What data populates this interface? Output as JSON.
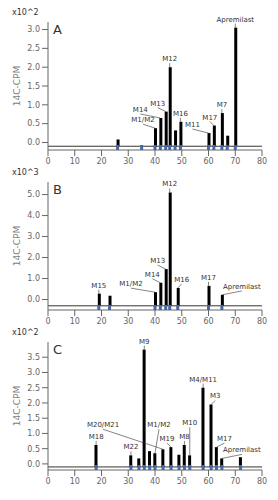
{
  "chart_data": [
    {
      "type": "bar",
      "title": "A",
      "y_label": "14C-CPM",
      "y_exponent": "x10^2",
      "xlim": [
        0,
        80
      ],
      "xticks": [
        0,
        10,
        20,
        30,
        40,
        50,
        60,
        70,
        80
      ],
      "ylim": [
        -0.2,
        3.2
      ],
      "yticks": [
        {
          "value": 0,
          "label": "0.0"
        },
        0.5,
        {
          "value": 1,
          "label": "1.0"
        },
        1.5,
        {
          "value": 2,
          "label": "2.0"
        },
        2.5,
        {
          "value": 3,
          "label": "3.0"
        }
      ],
      "grid": false,
      "baseline": -0.1,
      "color": "black",
      "x": [
        26,
        40,
        42,
        44,
        45.5,
        47.5,
        49.5,
        60,
        62,
        65,
        67,
        70
      ],
      "values": [
        0.08,
        0.38,
        0.65,
        0.82,
        2.0,
        0.32,
        0.55,
        0.25,
        0.45,
        0.78,
        0.18,
        3.05
      ],
      "annotations": [
        null,
        "M1/M2",
        "M14",
        "M13",
        "M12",
        null,
        "M16",
        "M11",
        "M17",
        "M7",
        null,
        "Apremilast"
      ],
      "fraction_markers": {
        "color": "#4466aa",
        "x": [
          26,
          35,
          40,
          42,
          44,
          45.5,
          47.5,
          49.5,
          60,
          62,
          65,
          67,
          70
        ]
      }
    },
    {
      "type": "bar",
      "title": "B",
      "y_label": "14C-CPM",
      "y_exponent": "x10^3",
      "xlim": [
        0,
        80
      ],
      "xticks": [
        0,
        10,
        20,
        30,
        40,
        50,
        60,
        70,
        80
      ],
      "ylim": [
        -0.5,
        5.6
      ],
      "yticks": [
        {
          "value": 0,
          "label": "0.0"
        },
        {
          "value": 1,
          "label": "1.0"
        },
        {
          "value": 2,
          "label": "2.0"
        },
        {
          "value": 3,
          "label": "3.0"
        },
        {
          "value": 4,
          "label": "4.0"
        },
        {
          "value": 5,
          "label": "5.0"
        }
      ],
      "grid": false,
      "baseline": -0.3,
      "color": "black",
      "x": [
        19,
        23,
        40,
        42,
        44,
        45.5,
        48.5,
        60,
        65
      ],
      "values": [
        0.28,
        0.18,
        0.35,
        0.8,
        1.45,
        5.1,
        0.55,
        0.65,
        0.22
      ],
      "annotations": [
        "M15",
        null,
        "M1/M2",
        "M14",
        "M13",
        "M12",
        "M16",
        "M17",
        "Apremilast"
      ],
      "fraction_markers": {
        "color": "#4466aa",
        "x": [
          19,
          23,
          40,
          42,
          44,
          45.5,
          48.5,
          60,
          65
        ]
      }
    },
    {
      "type": "bar",
      "title": "C",
      "y_label": "14C-CPM",
      "y_exponent": "x10^2",
      "xlim": [
        0,
        80
      ],
      "xticks": [
        0,
        10,
        20,
        30,
        40,
        50,
        60,
        70,
        80
      ],
      "ylim": [
        -0.2,
        4.0
      ],
      "yticks": [
        {
          "value": 0,
          "label": "0.0"
        },
        0.5,
        {
          "value": 1,
          "label": "1.0"
        },
        1.5,
        {
          "value": 2,
          "label": "2.0"
        },
        2.5,
        {
          "value": 3,
          "label": "3.0"
        },
        3.5
      ],
      "grid": false,
      "baseline": -0.1,
      "color": "black",
      "x": [
        18,
        31,
        34,
        36,
        38,
        40,
        43,
        46,
        49,
        51,
        53,
        58,
        61,
        63,
        65,
        72
      ],
      "values": [
        0.62,
        0.28,
        0.18,
        3.75,
        0.42,
        0.35,
        0.48,
        0.55,
        0.3,
        0.62,
        0.28,
        2.5,
        1.95,
        0.55,
        0.18,
        0.22
      ],
      "annotations": [
        "M18",
        "M22",
        null,
        "M9",
        null,
        "M1/M2",
        "M20/M21",
        "M19",
        null,
        "M8",
        "M10",
        "M4/M11",
        "M3",
        "M17",
        "Apremilast",
        null
      ],
      "fraction_markers": {
        "color": "#4466aa",
        "x": [
          18,
          31,
          34,
          36,
          38,
          40,
          43,
          46,
          49,
          51,
          53,
          58,
          61,
          63,
          65,
          72
        ]
      }
    }
  ]
}
